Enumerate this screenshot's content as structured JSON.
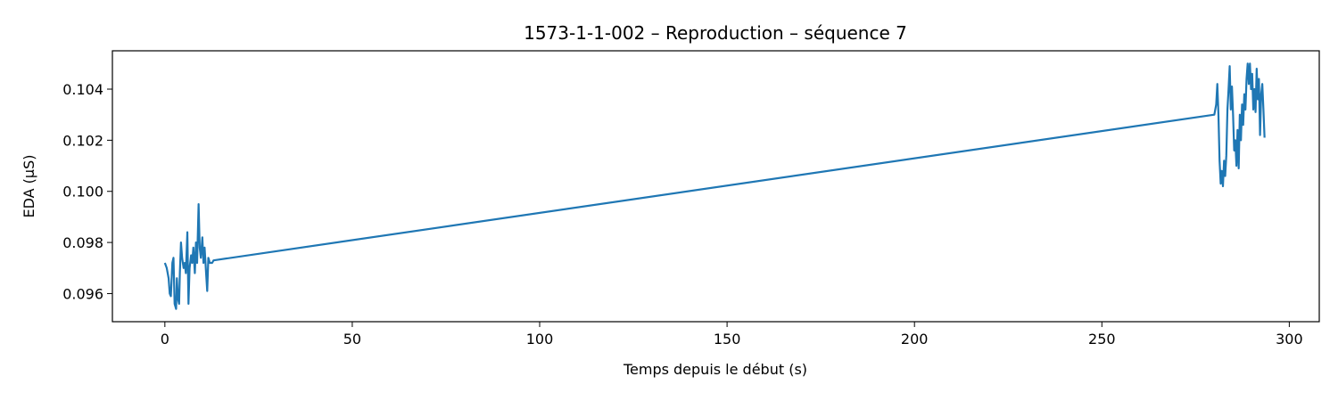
{
  "chart_data": {
    "type": "line",
    "title": "1573-1-1-002 – Reproduction – séquence 7",
    "xlabel": "Temps depuis le début (s)",
    "ylabel": "EDA (µS)",
    "xlim": [
      -14,
      308
    ],
    "ylim": [
      0.0949,
      0.1055
    ],
    "xticks": [
      0,
      50,
      100,
      150,
      200,
      250,
      300
    ],
    "yticks": [
      0.096,
      0.098,
      0.1,
      0.102,
      0.104
    ],
    "ytick_labels": [
      "0.096",
      "0.098",
      "0.100",
      "0.102",
      "0.104"
    ],
    "grid": false,
    "line_color": "#1f77b4",
    "series": [
      {
        "x": [
          0,
          0.5,
          1,
          1.3,
          1.6,
          2,
          2.3,
          2.6,
          3,
          3.2,
          3.5,
          3.8,
          4.0,
          4.3,
          4.6,
          5.0,
          5.3,
          5.6,
          6.0,
          6.3,
          6.6,
          7.0,
          7.3,
          7.6,
          8.0,
          8.3,
          8.6,
          9.0,
          9.3,
          9.6,
          10.0,
          10.3,
          10.6,
          11.0,
          11.3,
          11.6,
          12.0,
          12.3,
          12.6,
          13.0,
          280.0,
          280.5,
          280.8,
          281.1,
          281.4,
          281.7,
          282.0,
          282.3,
          282.6,
          282.9,
          283.2,
          283.5,
          283.8,
          284.1,
          284.4,
          284.7,
          285.0,
          285.3,
          285.6,
          285.9,
          286.2,
          286.5,
          286.8,
          287.1,
          287.4,
          287.7,
          288.0,
          288.3,
          288.6,
          288.9,
          289.2,
          289.5,
          289.8,
          290.1,
          290.4,
          290.7,
          291.0,
          291.3,
          291.6,
          291.9,
          292.2,
          292.5,
          292.8,
          293.1,
          293.4
        ],
        "y": [
          0.0972,
          0.097,
          0.0966,
          0.096,
          0.0959,
          0.0972,
          0.0974,
          0.0956,
          0.0954,
          0.0966,
          0.0958,
          0.0956,
          0.0968,
          0.098,
          0.0974,
          0.097,
          0.0972,
          0.0968,
          0.0984,
          0.0956,
          0.097,
          0.0975,
          0.0972,
          0.0978,
          0.0968,
          0.098,
          0.0972,
          0.0995,
          0.0978,
          0.0974,
          0.0982,
          0.0972,
          0.0978,
          0.0968,
          0.0961,
          0.0974,
          0.0972,
          0.0972,
          0.0972,
          0.0973,
          0.103,
          0.1034,
          0.1042,
          0.103,
          0.1012,
          0.1003,
          0.1008,
          0.1002,
          0.1012,
          0.1006,
          0.1014,
          0.1032,
          0.104,
          0.1049,
          0.1032,
          0.1041,
          0.103,
          0.1016,
          0.102,
          0.101,
          0.1024,
          0.1009,
          0.103,
          0.102,
          0.1034,
          0.1026,
          0.1038,
          0.1032,
          0.1044,
          0.105,
          0.1042,
          0.105,
          0.104,
          0.1046,
          0.1032,
          0.104,
          0.1031,
          0.1048,
          0.1036,
          0.1044,
          0.1022,
          0.1038,
          0.1042,
          0.1032,
          0.1021
        ]
      }
    ]
  }
}
